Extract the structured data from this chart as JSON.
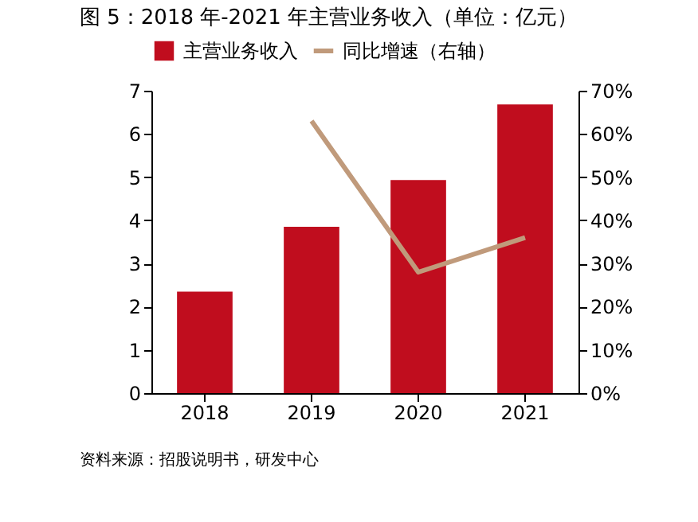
{
  "chart_data": {
    "type": "bar",
    "title": "图 5：2018 年-2021 年主营业务收入（单位：亿元）",
    "categories": [
      "2018",
      "2019",
      "2020",
      "2021"
    ],
    "series": [
      {
        "name": "主营业务收入",
        "color": "#c00d1e",
        "values": [
          2.35,
          3.85,
          4.93,
          6.68
        ]
      },
      {
        "name": "同比增速（右轴）",
        "type": "line",
        "axis": "y2",
        "color": "#c09a7b",
        "values": [
          null,
          63,
          28,
          36
        ]
      }
    ],
    "ylim": [
      0,
      7
    ],
    "yticks": [
      0,
      1,
      2,
      3,
      4,
      5,
      6,
      7
    ],
    "y2lim": [
      0,
      70
    ],
    "y2ticks": [
      {
        "value": 0,
        "label": "0%"
      },
      {
        "value": 10,
        "label": "10%"
      },
      {
        "value": 20,
        "label": "20%"
      },
      {
        "value": 30,
        "label": "30%"
      },
      {
        "value": 40,
        "label": "40%"
      },
      {
        "value": 50,
        "label": "50%"
      },
      {
        "value": 60,
        "label": "60%"
      },
      {
        "value": 70,
        "label": "70%"
      }
    ],
    "legend": "top",
    "grid": false,
    "annotations": [
      "资料来源：招股说明书，研发中心"
    ]
  }
}
